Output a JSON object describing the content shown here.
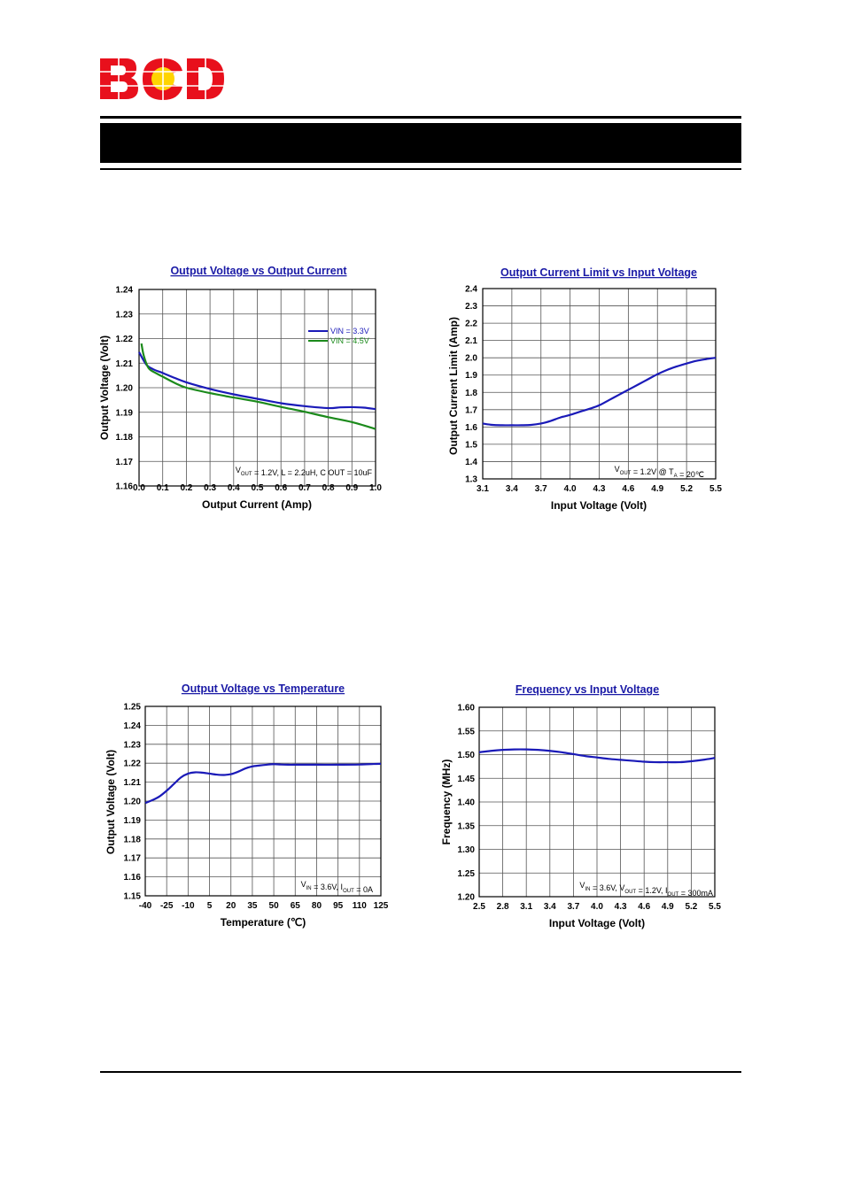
{
  "header": {
    "logo_text": "BCD",
    "colors": {
      "logo_red": "#e8101c",
      "logo_yellow": "#ffd400",
      "band": "#000000"
    }
  },
  "chart_data": [
    {
      "id": "c1",
      "type": "line",
      "title": "Output Voltage vs Output Current",
      "xlabel": "Output Current (Amp)",
      "ylabel": "Output Voltage (Volt)",
      "xlim": [
        0.0,
        1.0
      ],
      "ylim": [
        1.16,
        1.24
      ],
      "xticks": [
        "0.0",
        "0.1",
        "0.2",
        "0.3",
        "0.4",
        "0.5",
        "0.6",
        "0.7",
        "0.8",
        "0.9",
        "1.0"
      ],
      "yticks": [
        "1.16",
        "1.17",
        "1.18",
        "1.19",
        "1.20",
        "1.21",
        "1.22",
        "1.23",
        "1.24"
      ],
      "grid": true,
      "legend_position": "top-right",
      "note": "V OUT = 1.2V, L = 2.2uH, C OUT = 10uF",
      "series": [
        {
          "name": "VIN = 3.3V",
          "color": "#1a1ab8",
          "x": [
            0.0,
            0.03,
            0.06,
            0.1,
            0.15,
            0.2,
            0.3,
            0.4,
            0.5,
            0.6,
            0.7,
            0.8,
            0.85,
            0.9,
            0.95,
            1.0
          ],
          "y": [
            1.2145,
            1.2095,
            1.2075,
            1.206,
            1.204,
            1.2022,
            1.1995,
            1.1973,
            1.1955,
            1.1937,
            1.1925,
            1.1917,
            1.192,
            1.1921,
            1.1919,
            1.1913
          ]
        },
        {
          "name": "VIN = 4.5V",
          "color": "#1b8a1b",
          "x": [
            0.01,
            0.02,
            0.04,
            0.07,
            0.1,
            0.15,
            0.2,
            0.3,
            0.4,
            0.5,
            0.6,
            0.7,
            0.8,
            0.9,
            1.0
          ],
          "y": [
            1.218,
            1.213,
            1.208,
            1.206,
            1.2045,
            1.202,
            1.2,
            1.1978,
            1.196,
            1.1943,
            1.1922,
            1.1902,
            1.188,
            1.186,
            1.1832
          ]
        }
      ]
    },
    {
      "id": "c2",
      "type": "line",
      "title": "Output Current Limit vs Input Voltage",
      "xlabel": "Input Voltage (Volt)",
      "ylabel": "Output Current Limit (Amp)",
      "xlim": [
        3.1,
        5.5
      ],
      "ylim": [
        1.3,
        2.4
      ],
      "xticks": [
        "3.1",
        "3.4",
        "3.7",
        "4.0",
        "4.3",
        "4.6",
        "4.9",
        "5.2",
        "5.5"
      ],
      "yticks": [
        "1.3",
        "1.4",
        "1.5",
        "1.6",
        "1.7",
        "1.8",
        "1.9",
        "2.0",
        "2.1",
        "2.2",
        "2.3",
        "2.4"
      ],
      "grid": true,
      "note": "V OUT = 1.2V @ T A = 20℃",
      "series": [
        {
          "color": "#1a1ab8",
          "x": [
            3.1,
            3.2,
            3.3,
            3.4,
            3.5,
            3.6,
            3.7,
            3.8,
            3.9,
            4.0,
            4.1,
            4.2,
            4.3,
            4.4,
            4.5,
            4.6,
            4.7,
            4.8,
            4.9,
            5.0,
            5.1,
            5.2,
            5.3,
            5.4,
            5.5
          ],
          "y": [
            1.62,
            1.612,
            1.61,
            1.61,
            1.61,
            1.612,
            1.62,
            1.635,
            1.655,
            1.67,
            1.688,
            1.705,
            1.725,
            1.755,
            1.785,
            1.815,
            1.845,
            1.875,
            1.905,
            1.93,
            1.95,
            1.967,
            1.982,
            1.992,
            2.0
          ]
        }
      ]
    },
    {
      "id": "c3",
      "type": "line",
      "title": "Output Voltage vs Temperature",
      "xlabel": "Temperature (℃)",
      "ylabel": "Output Voltage (Volt)",
      "xlim": [
        -40,
        125
      ],
      "ylim": [
        1.15,
        1.25
      ],
      "xticks": [
        "-40",
        "-25",
        "-10",
        "5",
        "20",
        "35",
        "50",
        "65",
        "80",
        "95",
        "110",
        "125"
      ],
      "yticks": [
        "1.15",
        "1.16",
        "1.17",
        "1.18",
        "1.19",
        "1.20",
        "1.21",
        "1.22",
        "1.23",
        "1.24",
        "1.25"
      ],
      "grid": true,
      "note": "V IN = 3.6V, I OUT = 0A",
      "series": [
        {
          "color": "#1a1ab8",
          "x": [
            -40,
            -35,
            -30,
            -25,
            -20,
            -15,
            -10,
            -5,
            0,
            5,
            10,
            15,
            20,
            25,
            30,
            35,
            40,
            45,
            50,
            55,
            60,
            65,
            80,
            95,
            110,
            120,
            125
          ],
          "y": [
            1.199,
            1.2005,
            1.2025,
            1.2055,
            1.209,
            1.2125,
            1.2145,
            1.2152,
            1.215,
            1.2145,
            1.214,
            1.2138,
            1.2142,
            1.2155,
            1.2172,
            1.2183,
            1.2188,
            1.2192,
            1.2195,
            1.2193,
            1.2192,
            1.2192,
            1.2192,
            1.2192,
            1.2193,
            1.2196,
            1.2197
          ]
        }
      ]
    },
    {
      "id": "c4",
      "type": "line",
      "title": "Frequency vs Input Voltage",
      "xlabel": "Input Voltage (Volt)",
      "ylabel": "Frequency (MHz)",
      "xlim": [
        2.5,
        5.5
      ],
      "ylim": [
        1.2,
        1.6
      ],
      "xticks": [
        "2.5",
        "2.8",
        "3.1",
        "3.4",
        "3.7",
        "4.0",
        "4.3",
        "4.6",
        "4.9",
        "5.2",
        "5.5"
      ],
      "yticks": [
        "1.20",
        "1.25",
        "1.30",
        "1.35",
        "1.40",
        "1.45",
        "1.50",
        "1.55",
        "1.60"
      ],
      "grid": true,
      "note": "V IN = 3.6V, V OUT = 1.2V, I OUT = 300mA",
      "series": [
        {
          "color": "#1a1ab8",
          "x": [
            2.5,
            2.65,
            2.8,
            2.95,
            3.1,
            3.25,
            3.4,
            3.55,
            3.7,
            3.85,
            4.0,
            4.15,
            4.3,
            4.45,
            4.6,
            4.75,
            4.9,
            5.05,
            5.2,
            5.35,
            5.5
          ],
          "y": [
            1.505,
            1.508,
            1.51,
            1.511,
            1.511,
            1.51,
            1.508,
            1.505,
            1.501,
            1.497,
            1.494,
            1.491,
            1.489,
            1.487,
            1.485,
            1.484,
            1.484,
            1.484,
            1.486,
            1.489,
            1.493
          ]
        }
      ]
    }
  ]
}
